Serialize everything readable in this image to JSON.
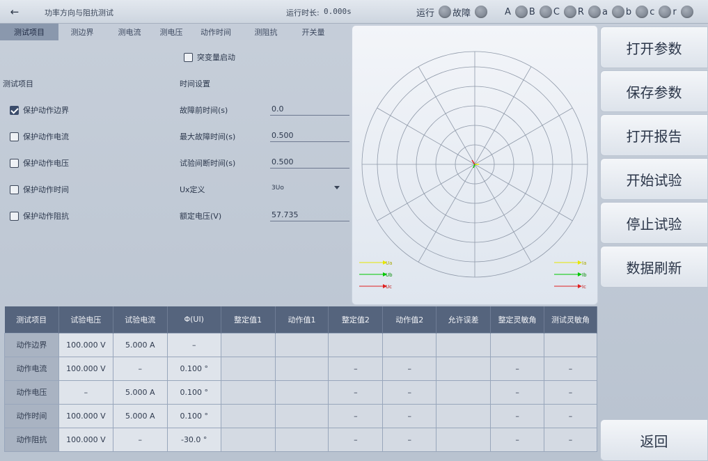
{
  "header": {
    "back_icon": "arrow-left-icon",
    "title": "功率方向与阻抗测试",
    "runtime_label": "运行时长:",
    "runtime_value": "0.000s",
    "status_run": "运行",
    "status_fault": "故障",
    "phase_labels": [
      "A",
      "B",
      "C",
      "R",
      "a",
      "b",
      "c",
      "r"
    ]
  },
  "tabs": [
    "测试项目",
    "测边界",
    "测电流",
    "测电压",
    "动作时间",
    "测阻抗",
    "开关量"
  ],
  "form": {
    "sudden_start_label": "突变量启动",
    "sudden_start_checked": false,
    "test_items_header": "测试项目",
    "time_settings_header": "时间设置",
    "test_items": [
      {
        "label": "保护动作边界",
        "checked": true
      },
      {
        "label": "保护动作电流",
        "checked": false
      },
      {
        "label": "保护动作电压",
        "checked": false
      },
      {
        "label": "保护动作时间",
        "checked": false
      },
      {
        "label": "保护动作阻抗",
        "checked": false
      }
    ],
    "fields": [
      {
        "label": "故障前时间(s)",
        "value": "0.0"
      },
      {
        "label": "最大故障时间(s)",
        "value": "0.500"
      },
      {
        "label": "试验间断时间(s)",
        "value": "0.500"
      },
      {
        "label": "Ux定义",
        "value": "3Uo"
      },
      {
        "label": "额定电压(V)",
        "value": "57.735"
      }
    ]
  },
  "plot": {
    "legend_left": [
      "Ua",
      "Ub",
      "Uc"
    ],
    "legend_right": [
      "Ia",
      "Ib",
      "Ic"
    ],
    "colors": {
      "a": "#e6e600",
      "b": "#00c800",
      "c": "#e02020"
    }
  },
  "buttons": {
    "open_params": "打开参数",
    "save_params": "保存参数",
    "open_report": "打开报告",
    "start_test": "开始试验",
    "stop_test": "停止试验",
    "refresh": "数据刷新",
    "back": "返回"
  },
  "table": {
    "headers": [
      "测试项目",
      "试验电压",
      "试验电流",
      "Φ(UI)",
      "整定值1",
      "动作值1",
      "整定值2",
      "动作值2",
      "允许误差",
      "整定灵敏角",
      "测试灵敏角"
    ],
    "rows": [
      [
        "动作边界",
        "100.000 V",
        "5.000 A",
        "–",
        "",
        "",
        "",
        "",
        "",
        "",
        ""
      ],
      [
        "动作电流",
        "100.000 V",
        "–",
        "0.100 °",
        "",
        "",
        "–",
        "–",
        "",
        "–",
        "–"
      ],
      [
        "动作电压",
        "–",
        "5.000 A",
        "0.100 °",
        "",
        "",
        "–",
        "–",
        "",
        "–",
        "–"
      ],
      [
        "动作时间",
        "100.000 V",
        "5.000 A",
        "0.100 °",
        "",
        "",
        "–",
        "–",
        "",
        "–",
        "–"
      ],
      [
        "动作阻抗",
        "100.000 V",
        "–",
        "-30.0 °",
        "",
        "",
        "–",
        "–",
        "",
        "–",
        "–"
      ]
    ]
  }
}
